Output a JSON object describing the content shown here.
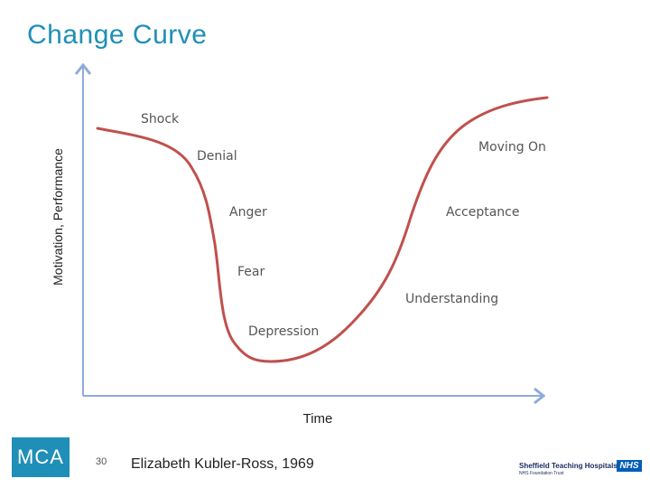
{
  "title": "Change Curve",
  "y_axis_label": "Motivation, Performance",
  "x_axis_label": "Time",
  "stages": [
    "Shock",
    "Denial",
    "Anger",
    "Fear",
    "Depression",
    "Understanding",
    "Acceptance",
    "Moving On"
  ],
  "footer": {
    "logo_text": "MCA",
    "page_number": "30",
    "citation": "Elizabeth Kubler-Ross, 1969",
    "trust_name": "Sheffield Teaching Hospitals",
    "trust_subtitle": "NHS Foundation Trust",
    "nhs_badge": "NHS"
  },
  "colors": {
    "title": "#1f8fb8",
    "curve": "#c0504d",
    "axes": "#8faadc",
    "logo": "#1f8fb8",
    "nhs": "#005eb8"
  }
}
